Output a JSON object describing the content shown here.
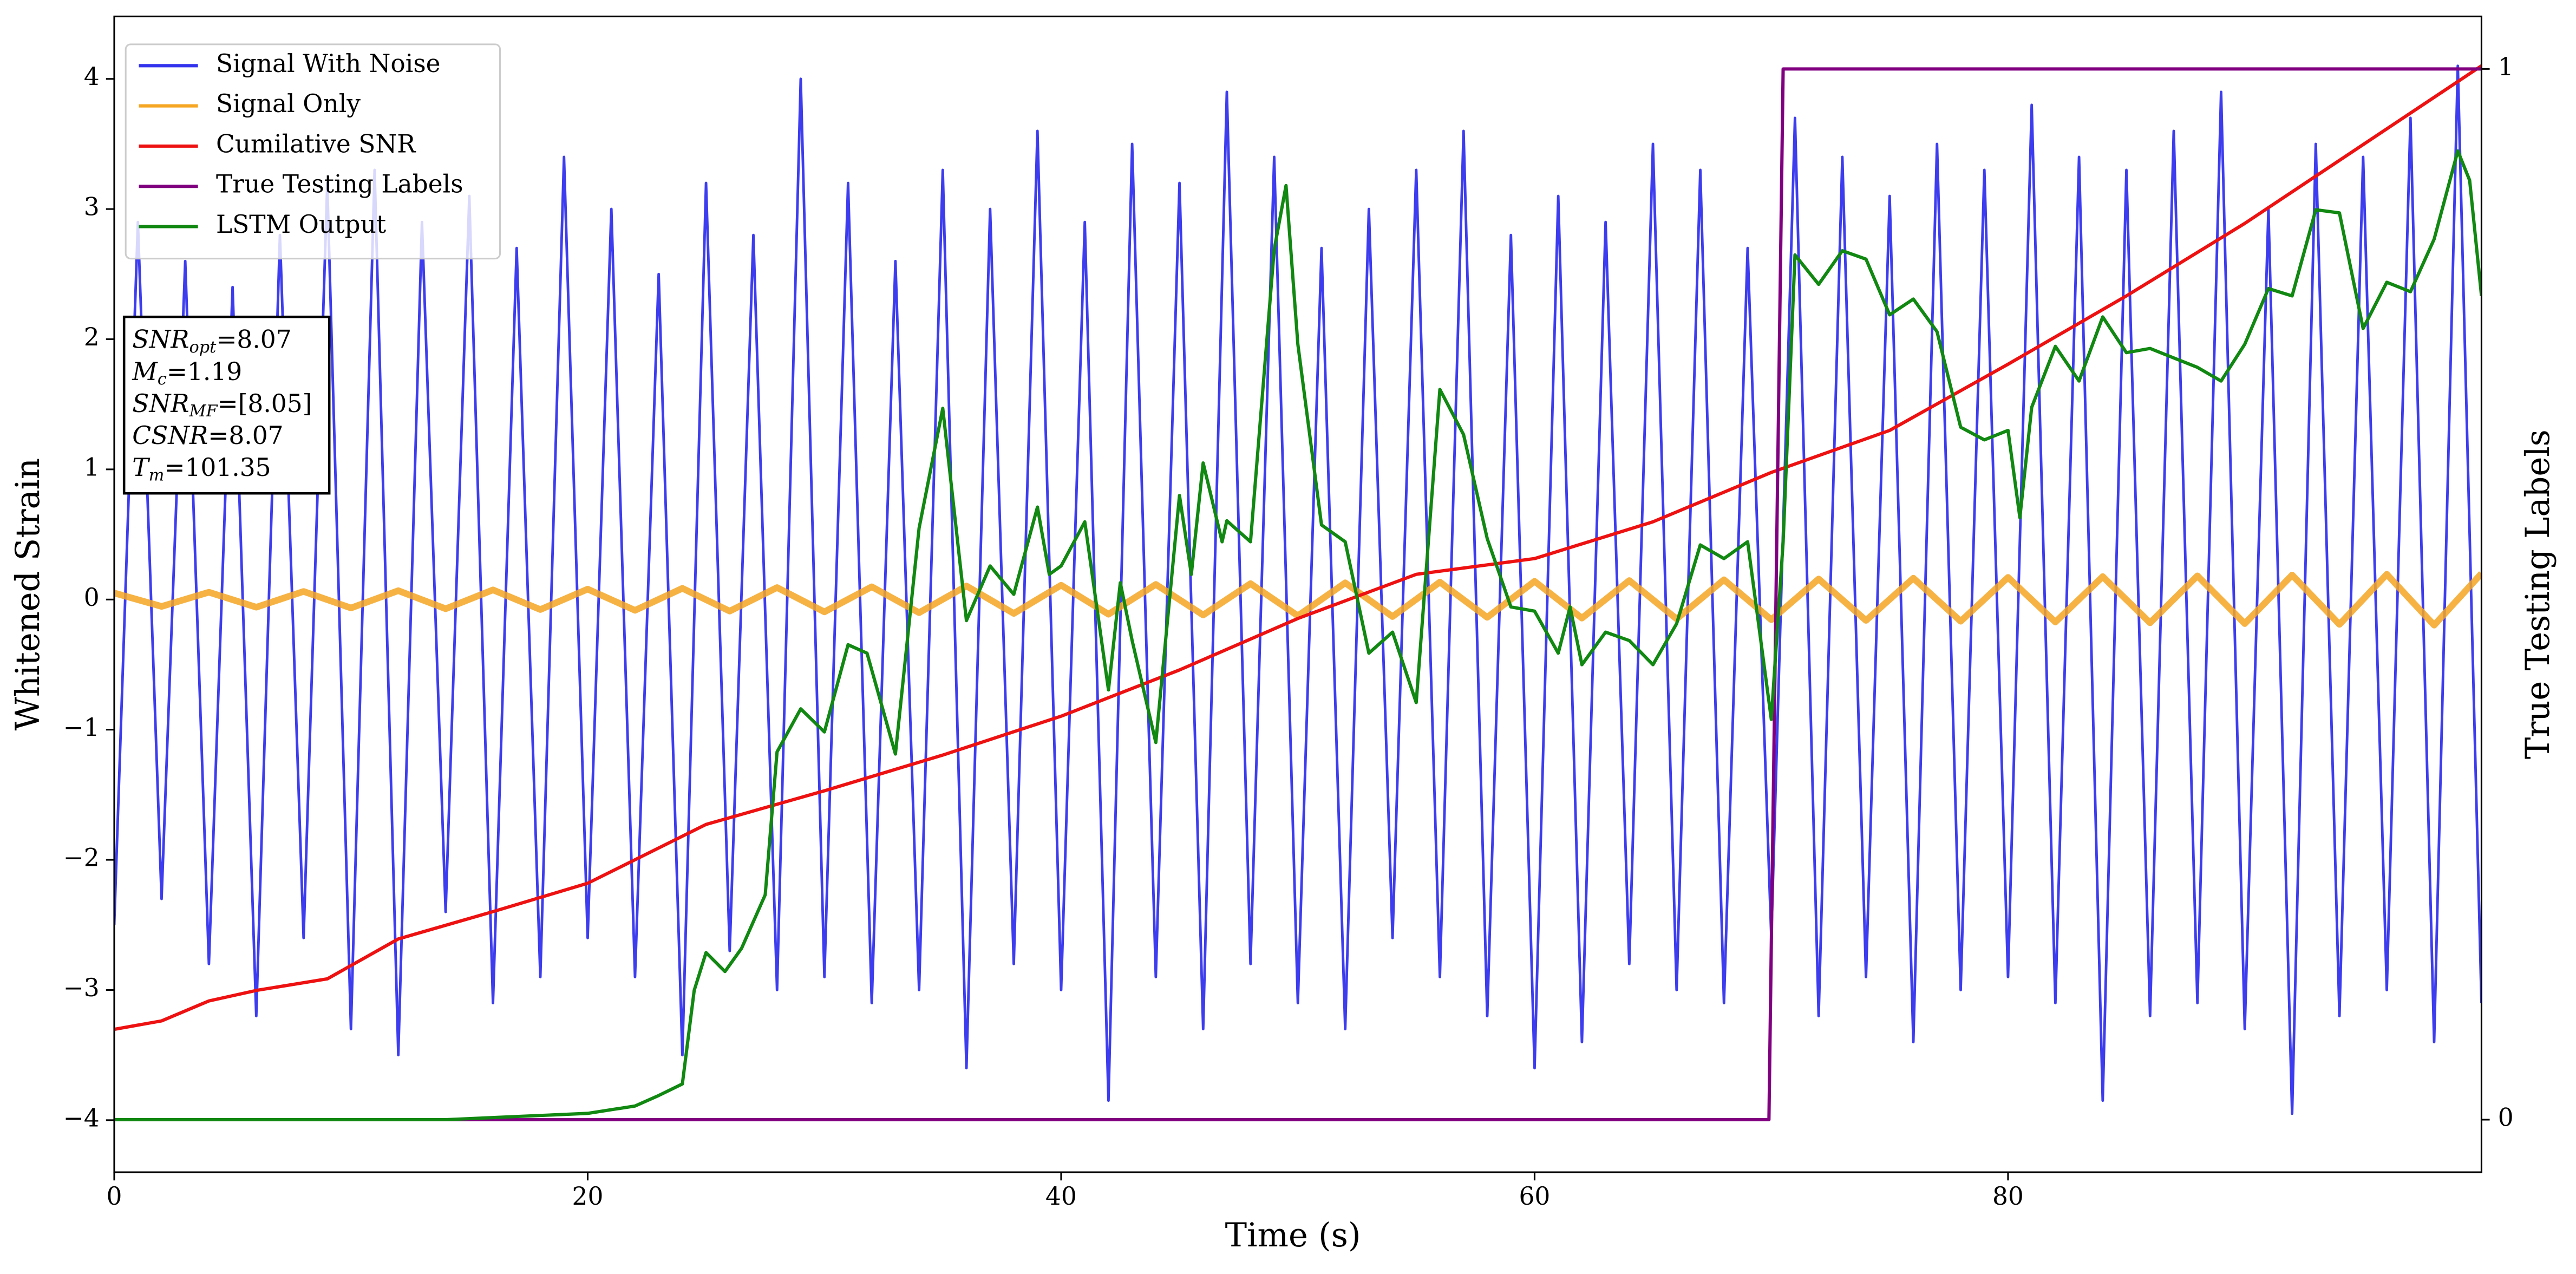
{
  "chart_data": {
    "type": "line",
    "xlabel": "Time (s)",
    "ylabel": "Whitened Strain",
    "y2label": "True Testing Labels",
    "xlim": [
      0,
      100
    ],
    "ylim": [
      -4.4,
      4.48
    ],
    "y2lim": [
      -0.05,
      1.05
    ],
    "xticks": [
      0,
      20,
      40,
      60,
      80
    ],
    "yticks": [
      {
        "value": -4,
        "label": "−4"
      },
      {
        "value": -3,
        "label": "−3"
      },
      {
        "value": -2,
        "label": "−2"
      },
      {
        "value": -1,
        "label": "−1"
      },
      0,
      1,
      2,
      3,
      4
    ],
    "y2ticks": [
      0,
      1
    ],
    "legend": "upper left",
    "series": [
      {
        "name": "Signal With Noise",
        "color": "#3333ee",
        "x": [
          0,
          1,
          2,
          3,
          4,
          5,
          6,
          7,
          8,
          9,
          10,
          11,
          12,
          13,
          14,
          15,
          16,
          17,
          18,
          19,
          20,
          21,
          22,
          23,
          24,
          25,
          26,
          27,
          28,
          29,
          30,
          31,
          32,
          33,
          34,
          35,
          36,
          37,
          38,
          39,
          40,
          41,
          42,
          43,
          44,
          45,
          46,
          47,
          48,
          49,
          50,
          51,
          52,
          53,
          54,
          55,
          56,
          57,
          58,
          59,
          60,
          61,
          62,
          63,
          64,
          65,
          66,
          67,
          68,
          69,
          70,
          71,
          72,
          73,
          74,
          75,
          76,
          77,
          78,
          79,
          80,
          81,
          82,
          83,
          84,
          85,
          86,
          87,
          88,
          89,
          90,
          91,
          92,
          93,
          94,
          95,
          96,
          97,
          98,
          99,
          100
        ],
        "values": [
          -2.5,
          2.9,
          -2.3,
          2.6,
          -2.8,
          2.4,
          -3.2,
          2.8,
          -2.6,
          3.2,
          -3.3,
          3.3,
          -3.5,
          2.9,
          -2.4,
          3.1,
          -3.1,
          2.7,
          -2.9,
          3.4,
          -2.6,
          3.0,
          -2.9,
          2.5,
          -3.5,
          3.2,
          -2.7,
          2.8,
          -3.0,
          4.0,
          -2.9,
          3.2,
          -3.1,
          2.6,
          -3.0,
          3.3,
          -3.6,
          3.0,
          -2.8,
          3.6,
          -3.0,
          2.9,
          -3.85,
          3.5,
          -2.9,
          3.2,
          -3.3,
          3.9,
          -2.8,
          3.4,
          -3.1,
          2.7,
          -3.3,
          3.0,
          -2.6,
          3.3,
          -2.9,
          3.6,
          -3.2,
          2.8,
          -3.6,
          3.1,
          -3.4,
          2.9,
          -2.8,
          3.5,
          -3.0,
          3.3,
          -3.1,
          2.7,
          -2.6,
          3.7,
          -3.2,
          3.4,
          -2.9,
          3.1,
          -3.4,
          3.5,
          -3.0,
          3.3,
          -2.9,
          3.8,
          -3.1,
          3.4,
          -3.85,
          3.3,
          -3.2,
          3.6,
          -3.1,
          3.9,
          -3.3,
          3.0,
          -3.95,
          3.5,
          -3.2,
          3.4,
          -3.0,
          3.7,
          -3.4,
          4.1,
          -3.1
        ]
      },
      {
        "name": "Signal Only",
        "color": "#f5a623",
        "x": [
          0,
          2,
          4,
          6,
          8,
          10,
          12,
          14,
          16,
          18,
          20,
          22,
          24,
          26,
          28,
          30,
          32,
          34,
          36,
          38,
          40,
          42,
          44,
          46,
          48,
          50,
          52,
          54,
          56,
          58,
          60,
          62,
          64,
          66,
          68,
          70,
          72,
          74,
          76,
          78,
          80,
          82,
          84,
          86,
          88,
          90,
          92,
          94,
          96,
          98,
          100
        ],
        "values": [
          0.05,
          -0.053,
          0.056,
          -0.059,
          0.062,
          -0.065,
          0.068,
          -0.071,
          0.074,
          -0.077,
          0.08,
          -0.083,
          0.086,
          -0.089,
          0.092,
          -0.095,
          0.098,
          -0.101,
          0.104,
          -0.107,
          0.11,
          -0.113,
          0.116,
          -0.119,
          0.122,
          -0.125,
          0.128,
          -0.131,
          0.134,
          -0.137,
          0.14,
          -0.143,
          0.146,
          -0.149,
          0.152,
          -0.155,
          0.158,
          -0.161,
          0.164,
          -0.167,
          0.17,
          -0.173,
          0.176,
          -0.179,
          0.182,
          -0.185,
          0.188,
          -0.191,
          0.194,
          -0.197,
          0.2
        ]
      },
      {
        "name": "Cumilative SNR",
        "color": "#ee1111",
        "axis": "y2",
        "x": [
          0,
          2,
          4,
          6,
          9,
          12,
          16,
          20,
          25,
          30,
          35,
          40,
          45,
          50,
          55,
          60,
          65,
          70,
          75,
          80,
          85,
          90,
          95,
          100
        ],
        "values": [
          0.086,
          0.094,
          0.113,
          0.123,
          0.134,
          0.172,
          0.198,
          0.225,
          0.281,
          0.313,
          0.347,
          0.384,
          0.428,
          0.477,
          0.519,
          0.534,
          0.569,
          0.616,
          0.656,
          0.719,
          0.784,
          0.853,
          0.928,
          1.003
        ]
      },
      {
        "name": "True Testing Labels",
        "color": "#800080",
        "axis": "y2",
        "x": [
          0,
          69.9,
          70.5,
          100
        ],
        "values": [
          0,
          0,
          1,
          1
        ]
      },
      {
        "name": "LSTM Output",
        "color": "#118811",
        "axis": "y2",
        "x": [
          0,
          14,
          17,
          20,
          22,
          23,
          24,
          24.5,
          25,
          25.8,
          26.5,
          27.5,
          28,
          29,
          30,
          31,
          31.8,
          33,
          34,
          35,
          36,
          37,
          38,
          39,
          39.5,
          40,
          41,
          42,
          42.5,
          43,
          44,
          45,
          45.5,
          46,
          46.8,
          47,
          48,
          49,
          49.5,
          50,
          51,
          52,
          53,
          54,
          55,
          56,
          57,
          58,
          59,
          60,
          61,
          61.5,
          62,
          63,
          64,
          65,
          66,
          67,
          68,
          69,
          70,
          70.5,
          71,
          72,
          73,
          74,
          75,
          76,
          77,
          78,
          79,
          80,
          80.5,
          81,
          82,
          83,
          84,
          85,
          86,
          87,
          88,
          89,
          90,
          91,
          92,
          93,
          94,
          95,
          96,
          97,
          98,
          99,
          99.5,
          100
        ],
        "values": [
          0,
          0,
          0.003,
          0.006,
          0.013,
          0.023,
          0.034,
          0.123,
          0.159,
          0.141,
          0.163,
          0.214,
          0.35,
          0.391,
          0.369,
          0.452,
          0.444,
          0.348,
          0.563,
          0.677,
          0.475,
          0.527,
          0.5,
          0.583,
          0.519,
          0.527,
          0.569,
          0.409,
          0.511,
          0.456,
          0.359,
          0.594,
          0.519,
          0.625,
          0.55,
          0.57,
          0.55,
          0.828,
          0.889,
          0.738,
          0.566,
          0.55,
          0.444,
          0.464,
          0.397,
          0.695,
          0.652,
          0.553,
          0.488,
          0.484,
          0.444,
          0.488,
          0.433,
          0.464,
          0.456,
          0.433,
          0.472,
          0.547,
          0.534,
          0.55,
          0.381,
          0.55,
          0.823,
          0.795,
          0.827,
          0.819,
          0.766,
          0.781,
          0.75,
          0.659,
          0.647,
          0.656,
          0.573,
          0.678,
          0.736,
          0.703,
          0.764,
          0.73,
          0.734,
          0.725,
          0.716,
          0.703,
          0.738,
          0.791,
          0.784,
          0.866,
          0.863,
          0.753,
          0.797,
          0.788,
          0.838,
          0.922,
          0.894,
          0.784
        ]
      }
    ],
    "annotation": {
      "lines": [
        {
          "symbol": "SNR",
          "sub": "opt",
          "text": "=8.07"
        },
        {
          "symbol": "M",
          "sub": "c",
          "text": "=1.19"
        },
        {
          "symbol": "SNR",
          "sub": "MF",
          "text": "=[8.05]"
        },
        {
          "symbol": "CSNR",
          "text": "=8.07"
        },
        {
          "symbol": "T",
          "sub": "m",
          "text": "=101.35"
        }
      ]
    }
  }
}
